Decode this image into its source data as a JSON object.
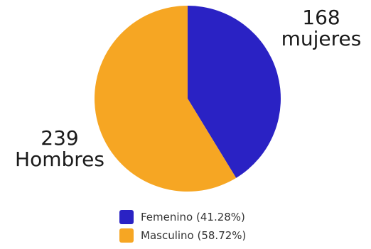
{
  "chart_data": {
    "type": "pie",
    "categories": [
      "Femenino (41.28%)",
      "Masculino (58.72%)"
    ],
    "values": [
      41.28,
      58.72
    ],
    "colors": [
      "#2a22c4",
      "#f6a623"
    ],
    "start_angle": "top",
    "direction": "clockwise",
    "legend_placement": "bottom",
    "annotations": {
      "female": [
        "168",
        "mujeres"
      ],
      "male": [
        "239",
        "Hombres"
      ]
    }
  }
}
